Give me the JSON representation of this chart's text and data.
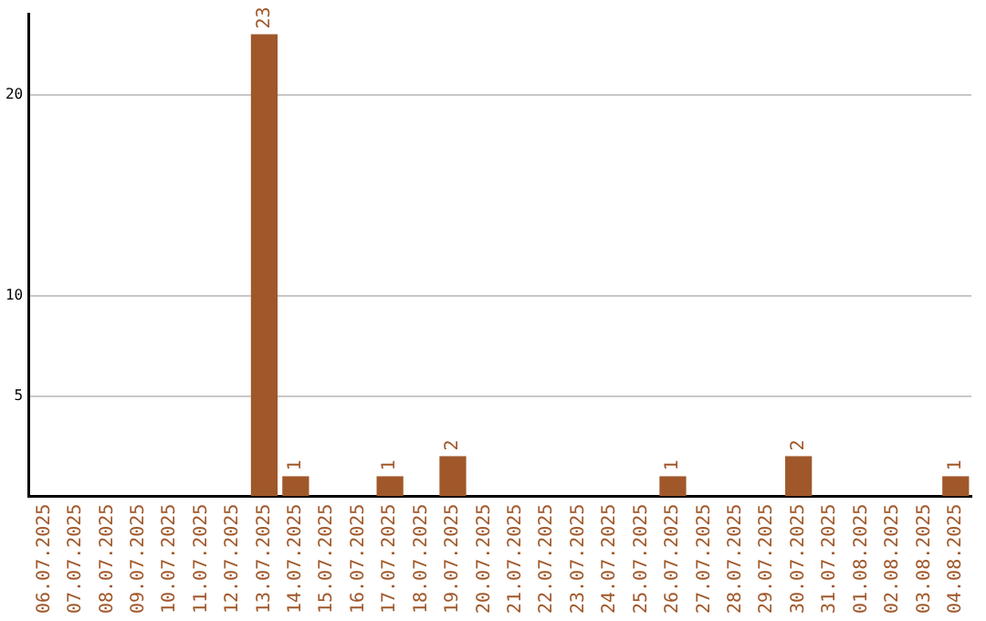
{
  "chart_data": {
    "type": "bar",
    "categories": [
      "06.07.2025",
      "07.07.2025",
      "08.07.2025",
      "09.07.2025",
      "10.07.2025",
      "11.07.2025",
      "12.07.2025",
      "13.07.2025",
      "14.07.2025",
      "15.07.2025",
      "16.07.2025",
      "17.07.2025",
      "18.07.2025",
      "19.07.2025",
      "20.07.2025",
      "21.07.2025",
      "22.07.2025",
      "23.07.2025",
      "24.07.2025",
      "25.07.2025",
      "26.07.2025",
      "27.07.2025",
      "28.07.2025",
      "29.07.2025",
      "30.07.2025",
      "31.07.2025",
      "01.08.2025",
      "02.08.2025",
      "03.08.2025",
      "04.08.2025"
    ],
    "values": [
      0,
      0,
      0,
      0,
      0,
      0,
      0,
      23,
      1,
      0,
      0,
      1,
      0,
      2,
      0,
      0,
      0,
      0,
      0,
      0,
      1,
      0,
      0,
      0,
      2,
      0,
      0,
      0,
      0,
      1
    ],
    "value_labels": [
      null,
      null,
      null,
      null,
      null,
      null,
      null,
      "23",
      "1",
      null,
      null,
      "1",
      null,
      "2",
      null,
      null,
      null,
      null,
      null,
      null,
      "1",
      null,
      null,
      null,
      "2",
      null,
      null,
      null,
      null,
      "1"
    ],
    "color": "#a0582a",
    "ylim": [
      0,
      24
    ],
    "yticks": [
      5,
      10,
      20
    ],
    "grid": "y",
    "legend": false
  }
}
